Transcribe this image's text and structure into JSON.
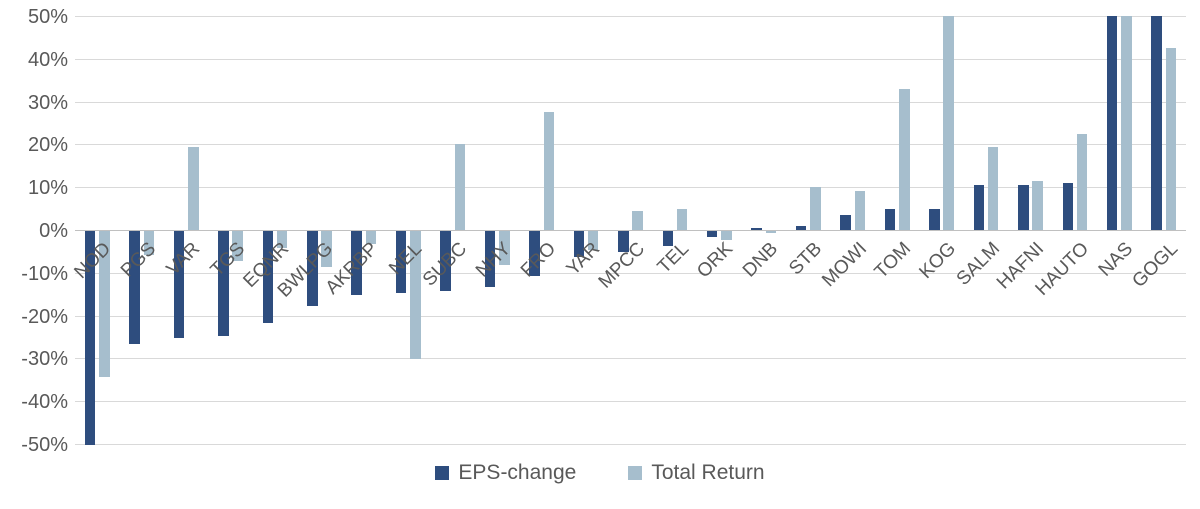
{
  "chart_data": {
    "type": "bar",
    "title": "",
    "xlabel": "",
    "ylabel": "",
    "categories": [
      "NOD",
      "PGS",
      "VAR",
      "TGS",
      "EQNR",
      "BWLPG",
      "AKRBP",
      "NEL",
      "SUBC",
      "NHY",
      "FRO",
      "YAR",
      "MPCC",
      "TEL",
      "ORK",
      "DNB",
      "STB",
      "MOWI",
      "TOM",
      "KOG",
      "SALM",
      "HAFNI",
      "HAUTO",
      "NAS",
      "GOGL"
    ],
    "series": [
      {
        "name": "EPS-change",
        "color": "#2E4D7E",
        "values": [
          -50,
          -26.5,
          -25,
          -24.5,
          -21.5,
          -17.5,
          -15,
          -14.5,
          -14,
          -13,
          -10.5,
          -6,
          -5,
          -3.5,
          -1.5,
          0.5,
          1,
          3.5,
          5,
          5,
          10.5,
          10.5,
          11,
          50,
          50
        ]
      },
      {
        "name": "Total Return",
        "color": "#A6BECD",
        "values": [
          -34,
          -5.5,
          19.5,
          -7,
          -4,
          -8.5,
          -3,
          -30,
          20,
          -8,
          27.5,
          -4.5,
          4.5,
          5,
          -2,
          -0.5,
          10,
          9,
          33,
          50,
          19.5,
          11.5,
          22.5,
          50,
          42.5
        ]
      }
    ],
    "ylim": [
      -50,
      50
    ],
    "y_tick_step": 10,
    "y_ticks": [
      "50%",
      "40%",
      "30%",
      "20%",
      "10%",
      "0%",
      "-10%",
      "-20%",
      "-30%",
      "-40%",
      "-50%"
    ],
    "grid": true,
    "legend_position": "bottom"
  },
  "colors": {
    "grid": "#d9d9d9",
    "zero_axis": "#c0c0c0",
    "tick_text": "#595959",
    "background": "#ffffff"
  }
}
